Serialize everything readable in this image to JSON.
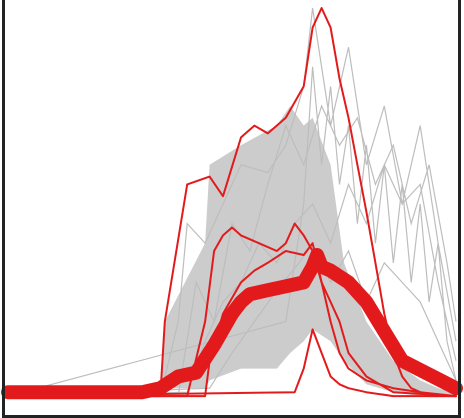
{
  "chart_data": {
    "type": "line",
    "title": "",
    "xlabel": "",
    "ylabel": "",
    "xlim": [
      0,
      100
    ],
    "ylim": [
      0,
      100
    ],
    "grid": false,
    "legend": "none",
    "colors": {
      "background": "#ffffff",
      "frame": "#222222",
      "background_band": "#cccccc",
      "background_lines": "#bdbdbd",
      "highlight": "#e31a1c"
    },
    "background_band": {
      "x": [
        0,
        34,
        35,
        44,
        45,
        52,
        60,
        63,
        66,
        68,
        72,
        75,
        80,
        86,
        92,
        96,
        100
      ],
      "low": [
        1,
        1,
        3,
        3,
        5,
        8,
        8,
        12,
        15,
        18,
        15,
        10,
        4,
        2,
        1,
        1,
        1
      ],
      "high": [
        2,
        2,
        20,
        40,
        60,
        65,
        70,
        75,
        70,
        72,
        60,
        35,
        20,
        10,
        5,
        3,
        2
      ]
    },
    "background_series": [
      {
        "x": [
          0,
          34,
          38,
          40,
          44,
          48,
          52,
          58,
          62,
          66,
          68,
          72,
          76,
          80,
          84,
          88,
          92,
          96,
          100
        ],
        "values": [
          1,
          1,
          20,
          45,
          40,
          50,
          60,
          58,
          65,
          80,
          100,
          70,
          90,
          60,
          75,
          50,
          55,
          30,
          10
        ]
      },
      {
        "x": [
          0,
          38,
          42,
          46,
          50,
          54,
          58,
          62,
          66,
          70,
          74,
          78,
          82,
          86,
          90,
          94,
          98,
          100
        ],
        "values": [
          1,
          1,
          30,
          20,
          45,
          38,
          55,
          70,
          60,
          75,
          65,
          72,
          55,
          65,
          45,
          60,
          35,
          20
        ]
      },
      {
        "x": [
          0,
          40,
          44,
          48,
          52,
          56,
          60,
          64,
          68,
          72,
          76,
          80,
          84,
          88,
          92,
          96,
          100
        ],
        "values": [
          1,
          2,
          15,
          25,
          30,
          40,
          35,
          45,
          50,
          40,
          55,
          45,
          60,
          50,
          70,
          40,
          15
        ]
      },
      {
        "x": [
          0,
          45,
          50,
          55,
          60,
          65,
          68,
          72,
          76,
          80,
          84,
          88,
          92,
          96,
          100
        ],
        "values": [
          1,
          3,
          12,
          20,
          28,
          35,
          40,
          30,
          38,
          25,
          35,
          30,
          25,
          15,
          5
        ]
      },
      {
        "x": [
          0,
          62,
          66,
          68,
          70,
          72,
          74,
          76,
          78,
          80,
          82,
          84,
          86,
          88,
          90,
          92,
          94,
          96,
          98,
          100
        ],
        "values": [
          1,
          20,
          50,
          85,
          60,
          80,
          55,
          70,
          45,
          65,
          40,
          60,
          35,
          55,
          30,
          50,
          25,
          40,
          15,
          5
        ]
      }
    ],
    "series": [
      {
        "x": [
          0,
          30,
          34,
          38,
          42,
          46,
          50,
          52,
          54,
          58,
          62,
          66,
          68,
          69,
          70,
          72,
          76,
          80,
          88,
          100
        ],
        "values": [
          2,
          2,
          3,
          6,
          7,
          14,
          22,
          25,
          27,
          28,
          29,
          30,
          34,
          37,
          34,
          33,
          30,
          25,
          10,
          3
        ],
        "width": 14
      },
      {
        "x": [
          0,
          34,
          35,
          40,
          45,
          48,
          52,
          55,
          58,
          62,
          66,
          68,
          70,
          72,
          74,
          76,
          78,
          80,
          82,
          84,
          86,
          88,
          90,
          94,
          100
        ],
        "values": [
          1,
          1,
          20,
          55,
          57,
          52,
          67,
          70,
          68,
          72,
          80,
          95,
          100,
          95,
          82,
          72,
          60,
          48,
          35,
          22,
          12,
          6,
          3,
          1,
          1
        ],
        "width": 2
      },
      {
        "x": [
          0,
          40,
          44,
          46,
          48,
          50,
          52,
          56,
          60,
          62,
          64,
          66,
          68,
          70,
          72,
          74,
          76,
          80,
          86,
          100
        ],
        "values": [
          1,
          1,
          20,
          38,
          42,
          44,
          42,
          40,
          38,
          40,
          45,
          42,
          38,
          30,
          25,
          20,
          12,
          6,
          2,
          1
        ],
        "width": 2
      },
      {
        "x": [
          0,
          44,
          45,
          48,
          52,
          55,
          58,
          62,
          66,
          68,
          70,
          72,
          74,
          76,
          80,
          86,
          92,
          100
        ],
        "values": [
          1,
          1,
          10,
          22,
          30,
          33,
          35,
          38,
          37,
          40,
          30,
          20,
          12,
          8,
          5,
          3,
          2,
          1
        ],
        "width": 2
      },
      {
        "x": [
          0,
          64,
          66,
          68,
          70,
          72,
          74,
          76,
          80,
          86,
          94,
          100
        ],
        "values": [
          1,
          2,
          8,
          18,
          12,
          6,
          4,
          3,
          2,
          1,
          1,
          1
        ],
        "width": 2
      }
    ]
  }
}
